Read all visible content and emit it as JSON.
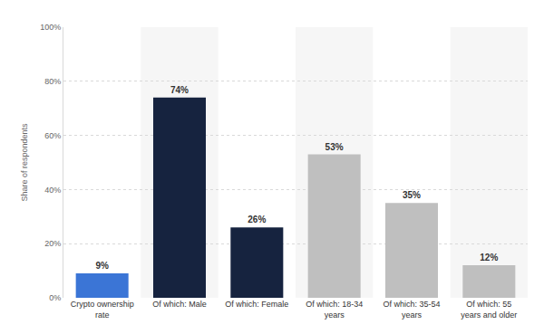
{
  "chart_data": {
    "type": "bar",
    "ylabel": "Share of respondents",
    "categories": [
      "Crypto ownership rate",
      "Of which: Male",
      "Of which: Female",
      "Of which: 18-34 years",
      "Of which: 35-54 years",
      "Of which: 55 years and older"
    ],
    "values": [
      9,
      74,
      26,
      53,
      35,
      12
    ],
    "value_labels": [
      "9%",
      "74%",
      "26%",
      "53%",
      "35%",
      "12%"
    ],
    "colors": [
      "#3b75d6",
      "#16233f",
      "#16233f",
      "#bfbfbf",
      "#bfbfbf",
      "#bfbfbf"
    ],
    "ylim": [
      0,
      100
    ],
    "yticks": [
      {
        "value": 0,
        "label": "0%"
      },
      {
        "value": 20,
        "label": "20%"
      },
      {
        "value": 40,
        "label": "40%"
      },
      {
        "value": 60,
        "label": "60%"
      },
      {
        "value": 80,
        "label": "80%"
      },
      {
        "value": 100,
        "label": "100%"
      }
    ],
    "grid": true,
    "data_labels": true
  }
}
